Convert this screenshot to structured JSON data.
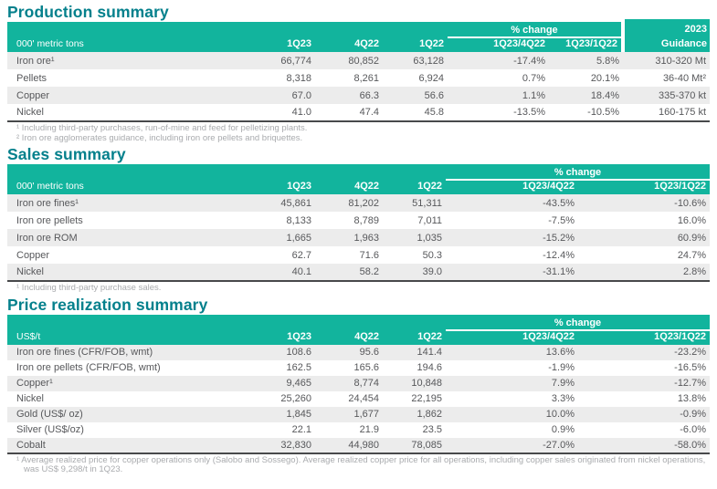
{
  "accent_colors": {
    "header_band_green": "#12B49D",
    "title_teal": "#04808C",
    "alt_row_gray": "#ECECEC",
    "body_text_gray": "#57585B",
    "footnote_gray": "#A9ABAE"
  },
  "tables": [
    {
      "title": "Production summary",
      "unit_label": "000' metric tons",
      "pct_change_label": "% change",
      "guidance_top_label": "2023",
      "guidance_bottom_label": "Guidance",
      "columns": [
        "1Q23",
        "4Q22",
        "1Q22",
        "1Q23/4Q22",
        "1Q23/1Q22"
      ],
      "rows": [
        {
          "label": "Iron ore¹",
          "values": [
            "66,774",
            "80,852",
            "63,128",
            "-17.4%",
            "5.8%",
            "310-320 Mt"
          ]
        },
        {
          "label": "Pellets",
          "values": [
            "8,318",
            "8,261",
            "6,924",
            "0.7%",
            "20.1%",
            "36-40 Mt²"
          ]
        },
        {
          "label": "Copper",
          "values": [
            "67.0",
            "66.3",
            "56.6",
            "1.1%",
            "18.4%",
            "335-370 kt"
          ]
        },
        {
          "label": "Nickel",
          "values": [
            "41.0",
            "47.4",
            "45.8",
            "-13.5%",
            "-10.5%",
            "160-175 kt"
          ]
        }
      ],
      "footnotes": [
        "¹ Including third-party purchases, run-of-mine and feed for pelletizing plants.",
        "² Iron ore agglomerates guidance, including iron ore pellets and briquettes."
      ]
    },
    {
      "title": "Sales summary",
      "unit_label": "000' metric tons",
      "pct_change_label": "% change",
      "columns": [
        "1Q23",
        "4Q22",
        "1Q22",
        "1Q23/4Q22",
        "1Q23/1Q22"
      ],
      "rows": [
        {
          "label": "Iron ore fines¹",
          "values": [
            "45,861",
            "81,202",
            "51,311",
            "-43.5%",
            "-10.6%"
          ]
        },
        {
          "label": "Iron ore pellets",
          "values": [
            "8,133",
            "8,789",
            "7,011",
            "-7.5%",
            "16.0%"
          ]
        },
        {
          "label": "Iron ore ROM",
          "values": [
            "1,665",
            "1,963",
            "1,035",
            "-15.2%",
            "60.9%"
          ]
        },
        {
          "label": "Copper",
          "values": [
            "62.7",
            "71.6",
            "50.3",
            "-12.4%",
            "24.7%"
          ]
        },
        {
          "label": "Nickel",
          "values": [
            "40.1",
            "58.2",
            "39.0",
            "-31.1%",
            "2.8%"
          ]
        }
      ],
      "footnotes": [
        "¹ Including third-party purchase sales."
      ]
    },
    {
      "title": "Price realization summary",
      "unit_label": "US$/t",
      "pct_change_label": "% change",
      "columns": [
        "1Q23",
        "4Q22",
        "1Q22",
        "1Q23/4Q22",
        "1Q23/1Q22"
      ],
      "rows": [
        {
          "label": "Iron ore fines (CFR/FOB, wmt)",
          "values": [
            "108.6",
            "95.6",
            "141.4",
            "13.6%",
            "-23.2%"
          ]
        },
        {
          "label": "Iron ore pellets (CFR/FOB, wmt)",
          "values": [
            "162.5",
            "165.6",
            "194.6",
            "-1.9%",
            "-16.5%"
          ]
        },
        {
          "label": "Copper¹",
          "values": [
            "9,465",
            "8,774",
            "10,848",
            "7.9%",
            "-12.7%"
          ]
        },
        {
          "label": "Nickel",
          "values": [
            "25,260",
            "24,454",
            "22,195",
            "3.3%",
            "13.8%"
          ]
        },
        {
          "label": "Gold (US$/ oz)",
          "values": [
            "1,845",
            "1,677",
            "1,862",
            "10.0%",
            "-0.9%"
          ]
        },
        {
          "label": "Silver (US$/oz)",
          "values": [
            "22.1",
            "21.9",
            "23.5",
            "0.9%",
            "-6.0%"
          ]
        },
        {
          "label": "Cobalt",
          "values": [
            "32,830",
            "44,980",
            "78,085",
            "-27.0%",
            "-58.0%"
          ]
        }
      ],
      "footnotes": [
        "¹ Average realized price for copper operations only (Salobo and Sossego). Average realized copper price for all operations, including copper sales originated from nickel operations, was US$ 9,298/t in 1Q23."
      ]
    }
  ]
}
